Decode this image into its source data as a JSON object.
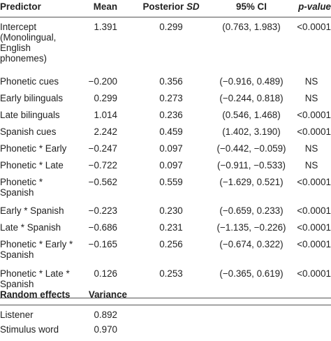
{
  "header": {
    "predictor": "Predictor",
    "mean": "Mean",
    "posterior_prefix": "Posterior ",
    "posterior_sd": "SD",
    "ci": "95% CI",
    "pvalue": "p-value"
  },
  "rows": [
    {
      "predictor": "Intercept (Monolingual, English phonemes)",
      "mean": "1.391",
      "sd": "0.299",
      "ci": "(0.763, 1.983)",
      "p": "<0.0001"
    },
    {
      "predictor": "Phonetic cues",
      "mean": "−0.200",
      "sd": "0.356",
      "ci": "(−0.916, 0.489)",
      "p": "NS"
    },
    {
      "predictor": "Early bilinguals",
      "mean": "0.299",
      "sd": "0.273",
      "ci": "(−0.244, 0.818)",
      "p": "NS"
    },
    {
      "predictor": "Late bilinguals",
      "mean": "1.014",
      "sd": "0.236",
      "ci": "(0.546, 1.468)",
      "p": "<0.0001"
    },
    {
      "predictor": "Spanish cues",
      "mean": "2.242",
      "sd": "0.459",
      "ci": "(1.402, 3.190)",
      "p": "<0.0001"
    },
    {
      "predictor": "Phonetic * Early",
      "mean": "−0.247",
      "sd": "0.097",
      "ci": "(−0.442, −0.059)",
      "p": "NS"
    },
    {
      "predictor": "Phonetic * Late",
      "mean": "−0.722",
      "sd": "0.097",
      "ci": "(−0.911, −0.533)",
      "p": "NS"
    },
    {
      "predictor": "Phonetic * Spanish",
      "mean": "−0.562",
      "sd": "0.559",
      "ci": "(−1.629, 0.521)",
      "p": "<0.0001"
    },
    {
      "predictor": "Early * Spanish",
      "mean": "−0.223",
      "sd": "0.230",
      "ci": "(−0.659, 0.233)",
      "p": "<0.0001"
    },
    {
      "predictor": "Late * Spanish",
      "mean": "−0.686",
      "sd": "0.231",
      "ci": "(−1.135, −0.226)",
      "p": "<0.0001"
    },
    {
      "predictor": "Phonetic * Early * Spanish",
      "mean": "−0.165",
      "sd": "0.256",
      "ci": "(−0.674, 0.322)",
      "p": "<0.0001"
    },
    {
      "predictor": "Phonetic * Late * Spanish",
      "mean": "0.126",
      "sd": "0.253",
      "ci": "(−0.365, 0.619)",
      "p": "<0.0001"
    }
  ],
  "random_header": {
    "label": "Random effects",
    "variance": "Variance"
  },
  "random_rows": [
    {
      "label": "Listener",
      "variance": "0.892"
    },
    {
      "label": "Stimulus word",
      "variance": "0.970"
    }
  ]
}
